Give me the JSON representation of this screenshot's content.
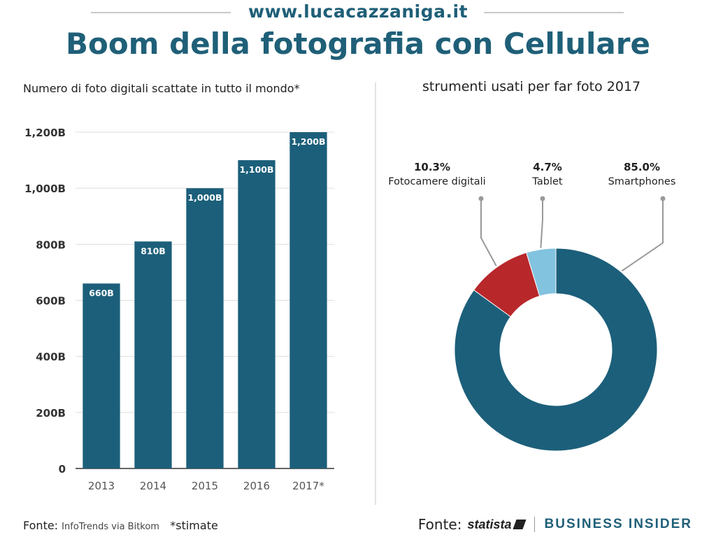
{
  "header": {
    "site": "www.lucacazzaniga.it",
    "title": "Boom della fotografia con Cellulare"
  },
  "footer": {
    "fonte_label": "Fonte:",
    "fonte_source": "InfoTrends via Bitkom",
    "note": "*stimate",
    "right_label": "Fonte:",
    "statista": "statista",
    "business_insider": "BUSINESS INSIDER"
  },
  "colors": {
    "primary": "#1c5f7a",
    "red": "#b8282b",
    "light_blue": "#82c3df",
    "title": "#1f5f78"
  },
  "chart_data": [
    {
      "type": "bar",
      "title": "Numero di foto digitali scattate in tutto il mondo*",
      "categories": [
        "2013",
        "2014",
        "2015",
        "2016",
        "2017*"
      ],
      "values": [
        660,
        810,
        1000,
        1100,
        1200
      ],
      "value_labels": [
        "660B",
        "810B",
        "1,000B",
        "1,100B",
        "1,200B"
      ],
      "yticks": [
        0,
        200,
        400,
        600,
        800,
        1000,
        1200
      ],
      "ytick_labels": [
        "0",
        "200B",
        "400B",
        "600B",
        "800B",
        "1,000B",
        "1,200B"
      ],
      "ylim": [
        0,
        1200
      ],
      "grid": true,
      "xlabel": "",
      "ylabel": ""
    },
    {
      "type": "pie",
      "variant": "donut",
      "title": "strumenti usati per far foto 2017",
      "slices": [
        {
          "label": "Smartphones",
          "value": 85.0,
          "display": "85.0%",
          "color": "#1c5f7a"
        },
        {
          "label": "Fotocamere digitali",
          "value": 10.3,
          "display": "10.3%",
          "color": "#b8282b"
        },
        {
          "label": "Tablet",
          "value": 4.7,
          "display": "4.7%",
          "color": "#82c3df"
        }
      ]
    }
  ]
}
